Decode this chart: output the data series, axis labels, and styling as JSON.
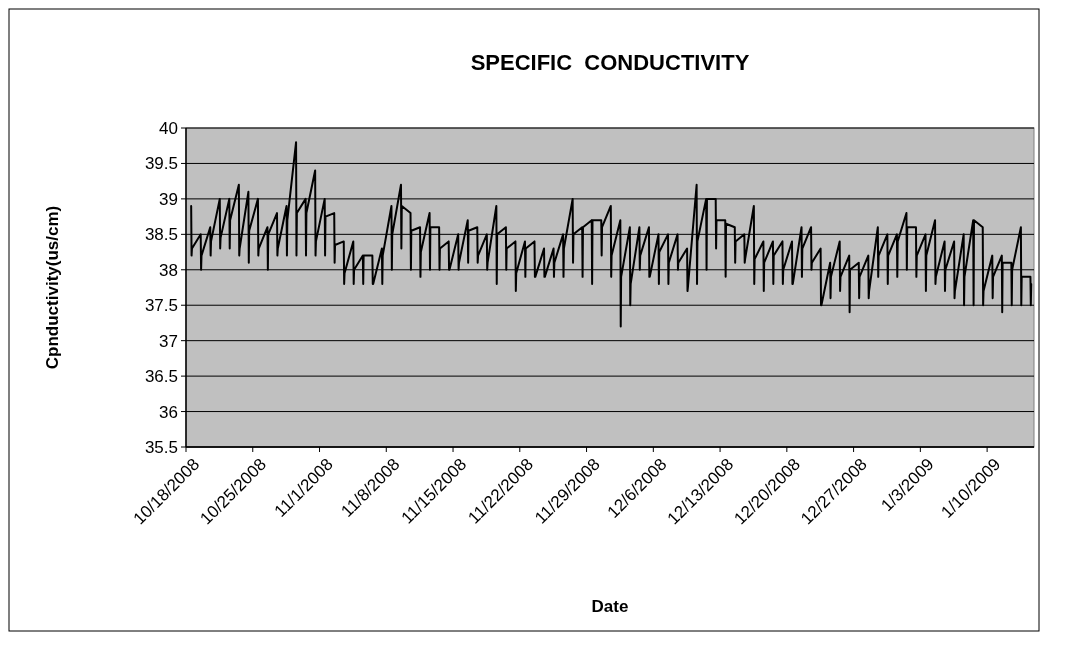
{
  "chart_data": {
    "type": "line",
    "title": "SPECIFIC  CONDUCTIVITY",
    "xlabel": "Date",
    "ylabel": "Cpnductivity(us/cm)",
    "xlim": [
      "2008-10-18",
      "2009-01-14T22:00"
    ],
    "xticks": [
      {
        "value": "2008-10-18",
        "label": "10/18/2008"
      },
      {
        "value": "2008-10-25",
        "label": "10/25/2008"
      },
      {
        "value": "2008-11-01",
        "label": "11/1/2008"
      },
      {
        "value": "2008-11-08",
        "label": "11/8/2008"
      },
      {
        "value": "2008-11-15",
        "label": "11/15/2008"
      },
      {
        "value": "2008-11-22",
        "label": "11/22/2008"
      },
      {
        "value": "2008-11-29",
        "label": "11/29/2008"
      },
      {
        "value": "2008-12-06",
        "label": "12/6/2008"
      },
      {
        "value": "2008-12-13",
        "label": "12/13/2008"
      },
      {
        "value": "2008-12-20",
        "label": "12/20/2008"
      },
      {
        "value": "2008-12-27",
        "label": "12/27/2008"
      },
      {
        "value": "2009-01-03",
        "label": "1/3/2009"
      },
      {
        "value": "2009-01-10",
        "label": "1/10/2009"
      }
    ],
    "ylim": [
      35.5,
      40
    ],
    "yticks": [
      35.5,
      36,
      36.5,
      37,
      37.5,
      38,
      38.5,
      39,
      39.5,
      40
    ],
    "grid": "y",
    "marker": "none",
    "line_style": "solid",
    "series": [
      {
        "color": "#000000",
        "x": [
          "2008-10-18T13:00",
          "2008-10-18T14:00",
          "2008-10-18T15:00",
          "2008-10-19T13:00",
          "2008-10-19T14:00",
          "2008-10-19T15:00",
          "2008-10-20T13:00",
          "2008-10-20T14:00",
          "2008-10-20T15:00",
          "2008-10-21T13:00",
          "2008-10-21T14:00",
          "2008-10-21T15:00",
          "2008-10-22T13:00",
          "2008-10-22T14:00",
          "2008-10-22T15:00",
          "2008-10-23T13:00",
          "2008-10-23T14:00",
          "2008-10-23T15:00",
          "2008-10-24T13:00",
          "2008-10-24T14:00",
          "2008-10-24T15:00",
          "2008-10-25T13:00",
          "2008-10-25T14:00",
          "2008-10-25T15:00",
          "2008-10-26T13:00",
          "2008-10-26T14:00",
          "2008-10-26T15:00",
          "2008-10-27T13:00",
          "2008-10-27T14:00",
          "2008-10-27T15:00",
          "2008-10-28T13:00",
          "2008-10-28T14:00",
          "2008-10-28T15:00",
          "2008-10-29T13:00",
          "2008-10-29T14:00",
          "2008-10-29T15:00",
          "2008-10-30T13:00",
          "2008-10-30T14:00",
          "2008-10-30T15:00",
          "2008-10-31T13:00",
          "2008-10-31T14:00",
          "2008-10-31T15:00",
          "2008-11-01T13:00",
          "2008-11-01T14:00",
          "2008-11-01T15:00",
          "2008-11-02T13:00",
          "2008-11-02T14:00",
          "2008-11-02T15:00",
          "2008-11-03T13:00",
          "2008-11-03T14:00",
          "2008-11-03T15:00",
          "2008-11-04T13:00",
          "2008-11-04T14:00",
          "2008-11-04T15:00",
          "2008-11-05T13:00",
          "2008-11-05T14:00",
          "2008-11-05T15:00",
          "2008-11-06T13:00",
          "2008-11-06T14:00",
          "2008-11-06T15:00",
          "2008-11-07T13:00",
          "2008-11-07T14:00",
          "2008-11-07T15:00",
          "2008-11-08T13:00",
          "2008-11-08T14:00",
          "2008-11-08T15:00",
          "2008-11-09T13:00",
          "2008-11-09T14:00",
          "2008-11-09T15:00",
          "2008-11-10T13:00",
          "2008-11-10T14:00",
          "2008-11-10T15:00",
          "2008-11-11T13:00",
          "2008-11-11T14:00",
          "2008-11-11T15:00",
          "2008-11-12T13:00",
          "2008-11-12T14:00",
          "2008-11-12T15:00",
          "2008-11-13T13:00",
          "2008-11-13T14:00",
          "2008-11-13T15:00",
          "2008-11-14T13:00",
          "2008-11-14T14:00",
          "2008-11-14T15:00",
          "2008-11-15T13:00",
          "2008-11-15T14:00",
          "2008-11-15T15:00",
          "2008-11-16T13:00",
          "2008-11-16T14:00",
          "2008-11-16T15:00",
          "2008-11-17T13:00",
          "2008-11-17T14:00",
          "2008-11-17T15:00",
          "2008-11-18T13:00",
          "2008-11-18T14:00",
          "2008-11-18T15:00",
          "2008-11-19T13:00",
          "2008-11-19T14:00",
          "2008-11-19T15:00",
          "2008-11-20T13:00",
          "2008-11-20T14:00",
          "2008-11-20T15:00",
          "2008-11-21T13:00",
          "2008-11-21T14:00",
          "2008-11-21T15:00",
          "2008-11-22T13:00",
          "2008-11-22T14:00",
          "2008-11-22T15:00",
          "2008-11-23T13:00",
          "2008-11-23T14:00",
          "2008-11-23T15:00",
          "2008-11-24T13:00",
          "2008-11-24T14:00",
          "2008-11-24T15:00",
          "2008-11-25T13:00",
          "2008-11-25T14:00",
          "2008-11-25T15:00",
          "2008-11-26T13:00",
          "2008-11-26T14:00",
          "2008-11-26T15:00",
          "2008-11-27T13:00",
          "2008-11-27T14:00",
          "2008-11-27T15:00",
          "2008-11-28T13:00",
          "2008-11-28T14:00",
          "2008-11-28T15:00",
          "2008-11-29T13:00",
          "2008-11-29T14:00",
          "2008-11-29T15:00",
          "2008-11-30T13:00",
          "2008-11-30T14:00",
          "2008-11-30T15:00",
          "2008-12-01T13:00",
          "2008-12-01T14:00",
          "2008-12-01T15:00",
          "2008-12-02T13:00",
          "2008-12-02T14:00",
          "2008-12-02T15:00",
          "2008-12-03T13:00",
          "2008-12-03T14:00",
          "2008-12-03T15:00",
          "2008-12-04T13:00",
          "2008-12-04T14:00",
          "2008-12-04T15:00",
          "2008-12-05T13:00",
          "2008-12-05T14:00",
          "2008-12-05T15:00",
          "2008-12-06T13:00",
          "2008-12-06T14:00",
          "2008-12-06T15:00",
          "2008-12-07T13:00",
          "2008-12-07T14:00",
          "2008-12-07T15:00",
          "2008-12-08T13:00",
          "2008-12-08T14:00",
          "2008-12-08T15:00",
          "2008-12-09T13:00",
          "2008-12-09T14:00",
          "2008-12-09T15:00",
          "2008-12-10T13:00",
          "2008-12-10T14:00",
          "2008-12-10T15:00",
          "2008-12-11T13:00",
          "2008-12-11T14:00",
          "2008-12-11T15:00",
          "2008-12-12T13:00",
          "2008-12-12T14:00",
          "2008-12-12T15:00",
          "2008-12-13T13:00",
          "2008-12-13T14:00",
          "2008-12-13T15:00",
          "2008-12-14T13:00",
          "2008-12-14T14:00",
          "2008-12-14T15:00",
          "2008-12-15T13:00",
          "2008-12-15T14:00",
          "2008-12-15T15:00",
          "2008-12-16T13:00",
          "2008-12-16T14:00",
          "2008-12-16T15:00",
          "2008-12-17T13:00",
          "2008-12-17T14:00",
          "2008-12-17T15:00",
          "2008-12-18T13:00",
          "2008-12-18T14:00",
          "2008-12-18T15:00",
          "2008-12-19T13:00",
          "2008-12-19T14:00",
          "2008-12-19T15:00",
          "2008-12-20T13:00",
          "2008-12-20T14:00",
          "2008-12-20T15:00",
          "2008-12-21T13:00",
          "2008-12-21T14:00",
          "2008-12-21T15:00",
          "2008-12-22T13:00",
          "2008-12-22T14:00",
          "2008-12-22T15:00",
          "2008-12-23T13:00",
          "2008-12-23T14:00",
          "2008-12-23T15:00",
          "2008-12-24T13:00",
          "2008-12-24T14:00",
          "2008-12-24T15:00",
          "2008-12-25T13:00",
          "2008-12-25T14:00",
          "2008-12-25T15:00",
          "2008-12-26T13:00",
          "2008-12-26T14:00",
          "2008-12-26T15:00",
          "2008-12-27T13:00",
          "2008-12-27T14:00",
          "2008-12-27T15:00",
          "2008-12-28T13:00",
          "2008-12-28T14:00",
          "2008-12-28T15:00",
          "2008-12-29T13:00",
          "2008-12-29T14:00",
          "2008-12-29T15:00",
          "2008-12-30T13:00",
          "2008-12-30T14:00",
          "2008-12-30T15:00",
          "2008-12-31T13:00",
          "2008-12-31T14:00",
          "2008-12-31T15:00",
          "2009-01-01T13:00",
          "2009-01-01T14:00",
          "2009-01-01T15:00",
          "2009-01-02T13:00",
          "2009-01-02T14:00",
          "2009-01-02T15:00",
          "2009-01-03T13:00",
          "2009-01-03T14:00",
          "2009-01-03T15:00",
          "2009-01-04T13:00",
          "2009-01-04T14:00",
          "2009-01-04T15:00",
          "2009-01-05T13:00",
          "2009-01-05T14:00",
          "2009-01-05T15:00",
          "2009-01-06T13:00",
          "2009-01-06T14:00",
          "2009-01-06T15:00",
          "2009-01-07T13:00",
          "2009-01-07T14:00",
          "2009-01-07T15:00",
          "2009-01-08T13:00",
          "2009-01-08T14:00",
          "2009-01-08T15:00",
          "2009-01-09T13:00",
          "2009-01-09T14:00",
          "2009-01-09T15:00",
          "2009-01-10T13:00",
          "2009-01-10T14:00",
          "2009-01-10T15:00",
          "2009-01-11T13:00",
          "2009-01-11T14:00",
          "2009-01-11T15:00",
          "2009-01-12T13:00",
          "2009-01-12T14:00",
          "2009-01-12T15:00",
          "2009-01-13T13:00",
          "2009-01-13T14:00",
          "2009-01-13T15:00",
          "2009-01-14T13:00",
          "2009-01-14T14:00",
          "2009-01-14T15:00"
        ],
        "values": [
          38.9,
          38.2,
          38.3,
          38.5,
          38.0,
          38.2,
          38.6,
          38.2,
          38.4,
          39.0,
          38.3,
          38.45,
          39.0,
          38.3,
          38.7,
          39.2,
          38.2,
          38.3,
          39.1,
          38.1,
          38.55,
          39.0,
          38.2,
          38.3,
          38.6,
          38.0,
          38.5,
          38.8,
          38.2,
          38.3,
          38.9,
          38.2,
          38.7,
          39.8,
          38.2,
          38.8,
          39.0,
          38.2,
          38.8,
          39.4,
          38.2,
          38.4,
          39.0,
          38.2,
          38.75,
          38.8,
          38.1,
          38.35,
          38.4,
          37.8,
          37.95,
          38.4,
          37.8,
          38.0,
          38.2,
          37.8,
          38.2,
          38.2,
          37.8,
          37.8,
          38.3,
          37.8,
          38.2,
          38.9,
          38.0,
          38.5,
          39.2,
          38.3,
          38.9,
          38.8,
          38.0,
          38.55,
          38.6,
          37.9,
          38.25,
          38.8,
          38.0,
          38.6,
          38.6,
          38.0,
          38.3,
          38.4,
          38.0,
          38.0,
          38.5,
          38.0,
          38.1,
          38.7,
          38.1,
          38.55,
          38.6,
          38.1,
          38.2,
          38.5,
          38.0,
          38.1,
          38.9,
          37.8,
          38.5,
          38.6,
          38.0,
          38.3,
          38.4,
          37.7,
          37.95,
          38.4,
          37.9,
          38.3,
          38.4,
          37.9,
          37.9,
          38.3,
          37.9,
          37.9,
          38.3,
          37.9,
          38.1,
          38.5,
          37.9,
          38.3,
          39.0,
          38.1,
          38.5,
          38.6,
          37.9,
          38.6,
          38.7,
          37.8,
          38.7,
          38.7,
          38.2,
          38.6,
          38.9,
          37.9,
          38.2,
          38.7,
          37.2,
          37.9,
          38.6,
          37.5,
          37.8,
          38.6,
          38.0,
          38.2,
          38.6,
          37.9,
          37.9,
          38.5,
          37.8,
          38.25,
          38.5,
          37.8,
          38.1,
          38.5,
          38.0,
          38.1,
          38.3,
          37.7,
          37.75,
          39.2,
          37.8,
          38.4,
          39.0,
          38.0,
          39.0,
          39.0,
          38.3,
          38.7,
          38.7,
          37.9,
          38.65,
          38.6,
          38.1,
          38.4,
          38.5,
          38.1,
          38.15,
          38.9,
          37.8,
          38.15,
          38.4,
          37.7,
          38.1,
          38.4,
          37.8,
          38.2,
          38.4,
          37.8,
          38.0,
          38.4,
          37.8,
          37.8,
          38.6,
          37.9,
          38.3,
          38.6,
          38.0,
          38.1,
          38.3,
          37.5,
          37.5,
          38.1,
          37.6,
          37.9,
          38.4,
          37.7,
          37.9,
          38.2,
          37.4,
          38.0,
          38.1,
          37.6,
          37.9,
          38.2,
          37.6,
          37.7,
          38.6,
          37.9,
          38.2,
          38.5,
          37.8,
          38.2,
          38.5,
          37.9,
          38.4,
          38.8,
          38.0,
          38.6,
          38.6,
          37.9,
          38.2,
          38.5,
          37.7,
          38.2,
          38.7,
          37.8,
          37.9,
          38.4,
          37.7,
          38.0,
          38.4,
          37.6,
          37.7,
          38.5,
          37.5,
          37.9,
          38.7,
          37.5,
          38.7,
          38.6,
          37.5,
          37.7,
          38.2,
          37.6,
          37.9,
          38.2,
          37.4,
          38.1,
          38.1,
          37.5,
          38.0,
          38.6,
          37.5,
          37.9,
          37.9,
          37.5,
          37.8
        ]
      }
    ]
  }
}
